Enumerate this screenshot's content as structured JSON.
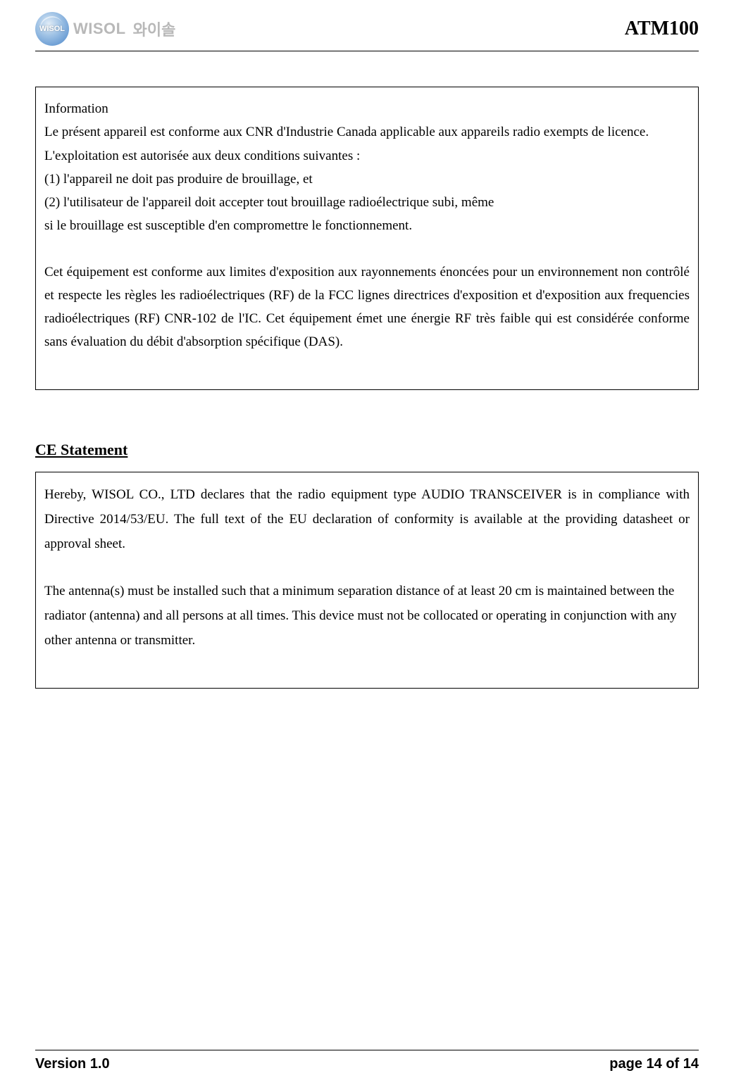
{
  "header": {
    "logo_badge_text": "WISOL",
    "logo_text": "WISOL",
    "logo_korean": "와이솔",
    "doc_title": "ATM100"
  },
  "info_box": {
    "title": "Information",
    "line1": "Le présent appareil est conforme aux CNR d'Industrie Canada applicable aux appareils radio exempts de licence.",
    "line2": "L'exploitation est autorisée aux deux conditions suivantes :",
    "line3": "(1) l'appareil ne doit pas produire de brouillage, et",
    "line4": "(2) l'utilisateur de l'appareil doit accepter tout brouillage radioélectrique subi, même",
    "line5": "si le brouillage est susceptible d'en compromettre le fonctionnement.",
    "para2": "Cet équipement est conforme aux limites d'exposition aux rayonnements énoncées pour un environnement non contrôlé et respecte les règles les radioélectriques (RF) de la FCC lignes directrices d'exposition et d'exposition aux frequencies radioélectriques (RF) CNR-102 de l'IC. Cet équipement émet une énergie RF très faible qui est considérée conforme sans évaluation du débit d'absorption spécifique (DAS)."
  },
  "ce": {
    "heading": "CE Statement",
    "para1": "Hereby, WISOL CO., LTD declares that the radio equipment type AUDIO TRANSCEIVER is in compliance with Directive 2014/53/EU. The full text of the EU declaration of conformity is available at the providing datasheet or approval sheet.",
    "para2": "The antenna(s) must be installed such that a minimum separation distance of at least 20 cm is maintained between the radiator (antenna) and all persons at all times. This device must not be collocated or operating in conjunction with any other antenna or transmitter."
  },
  "footer": {
    "version": "Version 1.0",
    "page": "page 14 of 14"
  },
  "colors": {
    "text": "#000000",
    "background": "#ffffff",
    "logo_gray": "#b8b8b8",
    "logo_blue_light": "#9fc2e5",
    "logo_blue_dark": "#4a85c9",
    "border": "#000000"
  },
  "typography": {
    "body_family": "Times New Roman",
    "body_size_pt": 14,
    "heading_size_pt": 16,
    "title_size_pt": 20,
    "footer_family": "Arial",
    "footer_size_pt": 15
  }
}
